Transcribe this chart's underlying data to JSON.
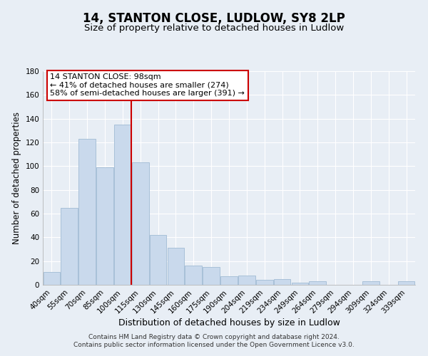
{
  "title": "14, STANTON CLOSE, LUDLOW, SY8 2LP",
  "subtitle": "Size of property relative to detached houses in Ludlow",
  "xlabel": "Distribution of detached houses by size in Ludlow",
  "ylabel": "Number of detached properties",
  "categories": [
    "40sqm",
    "55sqm",
    "70sqm",
    "85sqm",
    "100sqm",
    "115sqm",
    "130sqm",
    "145sqm",
    "160sqm",
    "175sqm",
    "190sqm",
    "204sqm",
    "219sqm",
    "234sqm",
    "249sqm",
    "264sqm",
    "279sqm",
    "294sqm",
    "309sqm",
    "324sqm",
    "339sqm"
  ],
  "values": [
    11,
    65,
    123,
    99,
    135,
    103,
    42,
    31,
    16,
    15,
    7,
    8,
    4,
    5,
    2,
    3,
    0,
    0,
    3,
    0,
    3
  ],
  "bar_color": "#c9d9ec",
  "bar_edge_color": "#a8c0d8",
  "ylim": [
    0,
    180
  ],
  "yticks": [
    0,
    20,
    40,
    60,
    80,
    100,
    120,
    140,
    160,
    180
  ],
  "vline_x": 4.5,
  "vline_color": "#cc0000",
  "annotation_title": "14 STANTON CLOSE: 98sqm",
  "annotation_line1": "← 41% of detached houses are smaller (274)",
  "annotation_line2": "58% of semi-detached houses are larger (391) →",
  "annotation_box_color": "#ffffff",
  "annotation_box_edge": "#cc0000",
  "footer1": "Contains HM Land Registry data © Crown copyright and database right 2024.",
  "footer2": "Contains public sector information licensed under the Open Government Licence v3.0.",
  "bg_color": "#e8eef5",
  "plot_bg_color": "#e8eef5",
  "grid_color": "#ffffff",
  "title_fontsize": 12,
  "subtitle_fontsize": 9.5,
  "xlabel_fontsize": 9,
  "ylabel_fontsize": 8.5,
  "tick_fontsize": 7.5,
  "footer_fontsize": 6.5,
  "annotation_fontsize": 8
}
